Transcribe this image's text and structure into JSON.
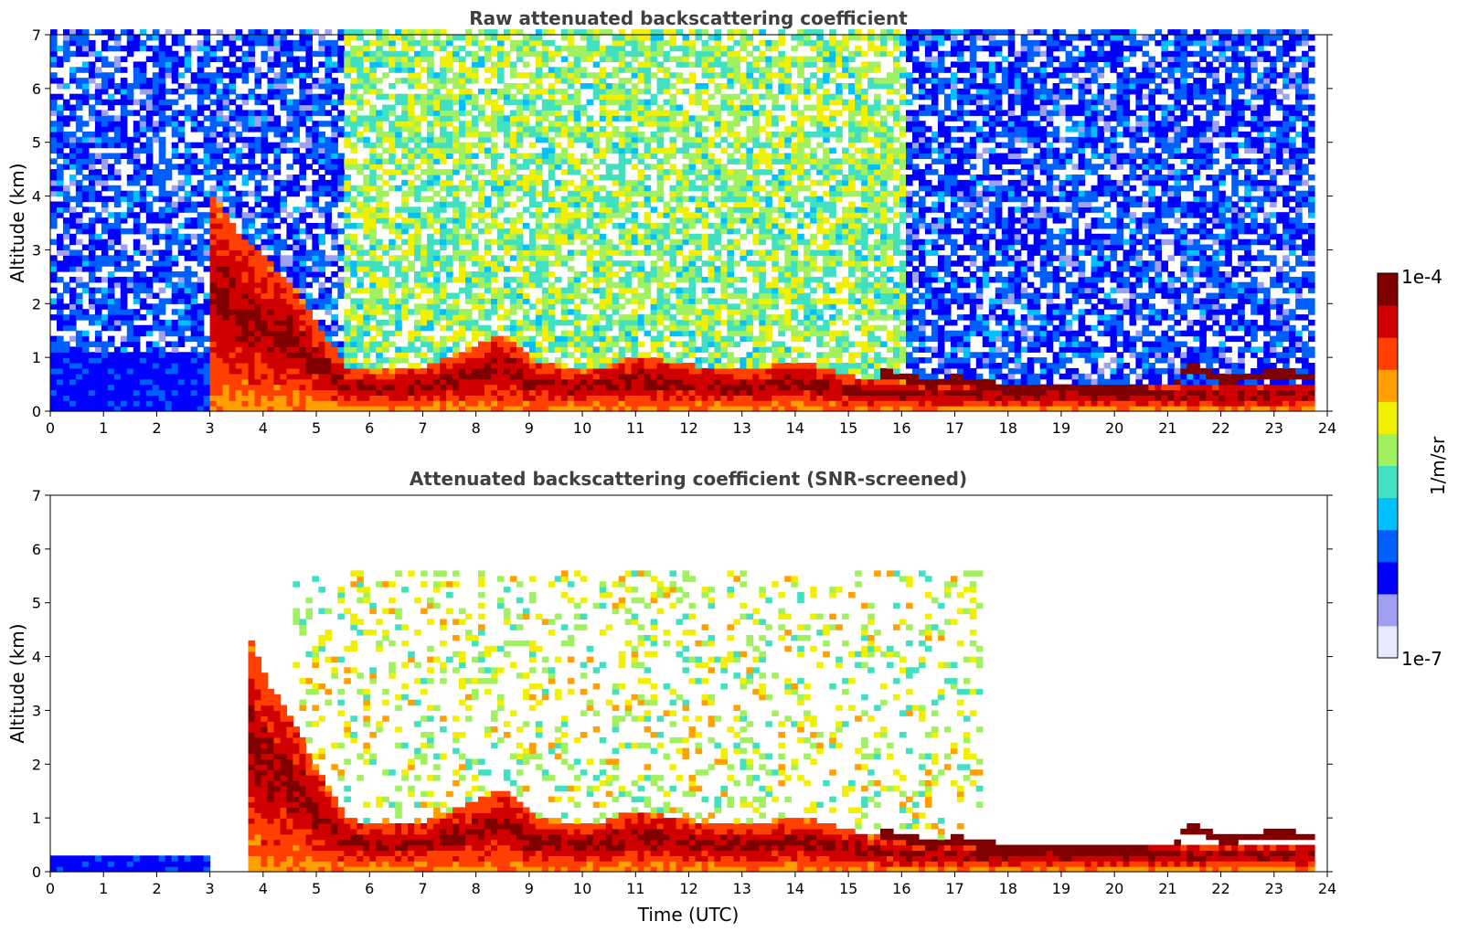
{
  "chart_data": [
    {
      "type": "heatmap",
      "title": "Raw attenuated backscattering coefficient",
      "xlabel": "",
      "ylabel": "Altitude (km)",
      "xlim": [
        0,
        24
      ],
      "ylim": [
        0,
        7
      ],
      "x_ticks": [
        "0",
        "1",
        "2",
        "3",
        "4",
        "5",
        "6",
        "7",
        "8",
        "9",
        "10",
        "11",
        "12",
        "13",
        "14",
        "15",
        "16",
        "17",
        "18",
        "19",
        "20",
        "21",
        "22",
        "23",
        "24"
      ],
      "y_ticks": [
        "0",
        "1",
        "2",
        "3",
        "4",
        "5",
        "6",
        "7"
      ],
      "data_end_hour": 23.7,
      "features": {
        "background_noise": "high",
        "dust_layer_top_km": [
          [
            3.0,
            4.0
          ],
          [
            3.5,
            3.2
          ],
          [
            4.0,
            2.8
          ],
          [
            4.5,
            2.3
          ],
          [
            5.0,
            1.5
          ],
          [
            5.5,
            0.8
          ],
          [
            6.0,
            0.7
          ],
          [
            7.0,
            0.8
          ],
          [
            8.0,
            1.2
          ],
          [
            8.5,
            1.4
          ],
          [
            9.0,
            0.9
          ],
          [
            10.0,
            0.7
          ],
          [
            11.0,
            1.0
          ],
          [
            12.0,
            0.8
          ],
          [
            13.0,
            0.7
          ],
          [
            14.0,
            0.9
          ],
          [
            15.0,
            0.6
          ],
          [
            16.0,
            0.5
          ]
        ],
        "cloud_base_km": [
          [
            15.5,
            0.7
          ],
          [
            16.5,
            0.45
          ],
          [
            17.0,
            0.55
          ],
          [
            18.0,
            0.35
          ],
          [
            19.0,
            0.4
          ],
          [
            20.0,
            0.35
          ],
          [
            21.0,
            0.3
          ],
          [
            21.3,
            0.8
          ],
          [
            22.0,
            0.55
          ],
          [
            23.0,
            0.65
          ],
          [
            23.6,
            0.6
          ]
        ]
      }
    },
    {
      "type": "heatmap",
      "title": "Attenuated backscattering coefficient (SNR-screened)",
      "xlabel": "Time (UTC)",
      "ylabel": "Altitude (km)",
      "xlim": [
        0,
        24
      ],
      "ylim": [
        0,
        7
      ],
      "x_ticks": [
        "0",
        "1",
        "2",
        "3",
        "4",
        "5",
        "6",
        "7",
        "8",
        "9",
        "10",
        "11",
        "12",
        "13",
        "14",
        "15",
        "16",
        "17",
        "18",
        "19",
        "20",
        "21",
        "22",
        "23",
        "24"
      ],
      "y_ticks": [
        "0",
        "1",
        "2",
        "3",
        "4",
        "5",
        "6",
        "7"
      ],
      "data_end_hour": 23.7,
      "features": {
        "background_noise": "screened",
        "dust_layer_top_km": [
          [
            3.7,
            4.3
          ],
          [
            4.0,
            3.5
          ],
          [
            4.5,
            2.8
          ],
          [
            5.0,
            1.8
          ],
          [
            5.5,
            1.0
          ],
          [
            6.0,
            0.8
          ],
          [
            7.0,
            0.9
          ],
          [
            8.0,
            1.3
          ],
          [
            8.5,
            1.5
          ],
          [
            9.0,
            1.0
          ],
          [
            10.0,
            0.8
          ],
          [
            11.0,
            1.1
          ],
          [
            12.0,
            0.9
          ],
          [
            13.0,
            0.8
          ],
          [
            14.0,
            1.0
          ],
          [
            15.0,
            0.7
          ],
          [
            16.0,
            0.5
          ]
        ],
        "cloud_base_km": [
          [
            15.5,
            0.7
          ],
          [
            16.5,
            0.45
          ],
          [
            17.0,
            0.55
          ],
          [
            18.0,
            0.35
          ],
          [
            19.0,
            0.4
          ],
          [
            20.0,
            0.35
          ],
          [
            21.0,
            0.3
          ],
          [
            21.3,
            0.8
          ],
          [
            22.0,
            0.55
          ],
          [
            23.0,
            0.65
          ],
          [
            23.6,
            0.6
          ]
        ]
      }
    }
  ],
  "colorbar": {
    "label": "1/m/sr",
    "max_label": "1e-4",
    "min_label": "1e-7",
    "scale": "log",
    "range": [
      1e-07,
      0.0001
    ],
    "colors": [
      "#e8e8ff",
      "#a0a0f0",
      "#0000ff",
      "#0060ff",
      "#00c0ff",
      "#40e0c0",
      "#a0f060",
      "#f0f000",
      "#ffa000",
      "#ff4000",
      "#d00000",
      "#800000"
    ]
  }
}
